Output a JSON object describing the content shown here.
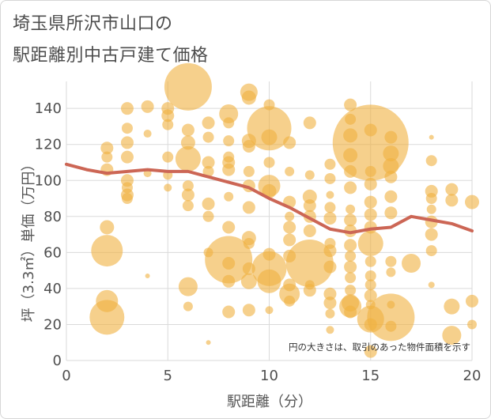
{
  "title_line1": "埼玉県所沢市山口の",
  "title_line2": "駅距離別中古戸建て価格",
  "chart_data": {
    "type": "scatter",
    "title": "埼玉県所沢市山口の駅距離別中古戸建て価格",
    "xlabel": "駅距離（分）",
    "ylabel": "坪（3.3㎡）単価（万円）",
    "xlim": [
      0,
      20
    ],
    "ylim": [
      0,
      155
    ],
    "x_ticks": [
      0,
      5,
      10,
      15,
      20
    ],
    "y_ticks": [
      0,
      20,
      40,
      60,
      80,
      100,
      120,
      140
    ],
    "grid": true,
    "note": "円の大きさは、取引のあった物件面積を示す",
    "colors": {
      "bubble": "#f0b040",
      "line": "#cc6655"
    },
    "bubbles": [
      {
        "x": 2,
        "y": 118,
        "r": 8
      },
      {
        "x": 2,
        "y": 113,
        "r": 7
      },
      {
        "x": 2,
        "y": 106,
        "r": 8
      },
      {
        "x": 2,
        "y": 74,
        "r": 9
      },
      {
        "x": 2,
        "y": 61,
        "r": 20
      },
      {
        "x": 2,
        "y": 33,
        "r": 14
      },
      {
        "x": 2,
        "y": 24,
        "r": 22
      },
      {
        "x": 3,
        "y": 140,
        "r": 8
      },
      {
        "x": 3,
        "y": 129,
        "r": 7
      },
      {
        "x": 3,
        "y": 121,
        "r": 8
      },
      {
        "x": 3,
        "y": 113,
        "r": 8
      },
      {
        "x": 3,
        "y": 100,
        "r": 8
      },
      {
        "x": 3,
        "y": 96,
        "r": 7
      },
      {
        "x": 3,
        "y": 92,
        "r": 8
      },
      {
        "x": 3,
        "y": 90,
        "r": 7
      },
      {
        "x": 4,
        "y": 141,
        "r": 8
      },
      {
        "x": 4,
        "y": 126,
        "r": 5
      },
      {
        "x": 4,
        "y": 104,
        "r": 5
      },
      {
        "x": 4,
        "y": 47,
        "r": 3
      },
      {
        "x": 5,
        "y": 140,
        "r": 8
      },
      {
        "x": 5,
        "y": 136,
        "r": 8
      },
      {
        "x": 5,
        "y": 131,
        "r": 7
      },
      {
        "x": 5,
        "y": 113,
        "r": 7
      },
      {
        "x": 5,
        "y": 103,
        "r": 6
      },
      {
        "x": 5,
        "y": 96,
        "r": 5
      },
      {
        "x": 6,
        "y": 152,
        "r": 30
      },
      {
        "x": 6,
        "y": 128,
        "r": 8
      },
      {
        "x": 6,
        "y": 121,
        "r": 9
      },
      {
        "x": 6,
        "y": 112,
        "r": 16
      },
      {
        "x": 6,
        "y": 97,
        "r": 7
      },
      {
        "x": 6,
        "y": 92,
        "r": 8
      },
      {
        "x": 6,
        "y": 86,
        "r": 7
      },
      {
        "x": 6,
        "y": 41,
        "r": 12
      },
      {
        "x": 6,
        "y": 30,
        "r": 6
      },
      {
        "x": 7,
        "y": 132,
        "r": 8
      },
      {
        "x": 7,
        "y": 124,
        "r": 7
      },
      {
        "x": 7,
        "y": 110,
        "r": 8
      },
      {
        "x": 7,
        "y": 105,
        "r": 7
      },
      {
        "x": 7,
        "y": 87,
        "r": 8
      },
      {
        "x": 7,
        "y": 80,
        "r": 7
      },
      {
        "x": 7,
        "y": 60,
        "r": 6
      },
      {
        "x": 7,
        "y": 10,
        "r": 3
      },
      {
        "x": 8,
        "y": 137,
        "r": 12
      },
      {
        "x": 8,
        "y": 132,
        "r": 7
      },
      {
        "x": 8,
        "y": 122,
        "r": 7
      },
      {
        "x": 8,
        "y": 113,
        "r": 7
      },
      {
        "x": 8,
        "y": 110,
        "r": 8
      },
      {
        "x": 8,
        "y": 106,
        "r": 8
      },
      {
        "x": 8,
        "y": 91,
        "r": 6
      },
      {
        "x": 8,
        "y": 74,
        "r": 8
      },
      {
        "x": 8,
        "y": 56,
        "r": 30
      },
      {
        "x": 8,
        "y": 54,
        "r": 8
      },
      {
        "x": 8,
        "y": 44,
        "r": 8
      },
      {
        "x": 8,
        "y": 27,
        "r": 8
      },
      {
        "x": 9,
        "y": 149,
        "r": 11
      },
      {
        "x": 9,
        "y": 146,
        "r": 9
      },
      {
        "x": 9,
        "y": 122,
        "r": 9
      },
      {
        "x": 9,
        "y": 119,
        "r": 8
      },
      {
        "x": 9,
        "y": 105,
        "r": 7
      },
      {
        "x": 9,
        "y": 97,
        "r": 8
      },
      {
        "x": 9,
        "y": 85,
        "r": 8
      },
      {
        "x": 9,
        "y": 68,
        "r": 9
      },
      {
        "x": 9,
        "y": 65,
        "r": 7
      },
      {
        "x": 9,
        "y": 51,
        "r": 8
      },
      {
        "x": 9,
        "y": 44,
        "r": 10
      },
      {
        "x": 9,
        "y": 28,
        "r": 8
      },
      {
        "x": 10,
        "y": 142,
        "r": 7
      },
      {
        "x": 10,
        "y": 129,
        "r": 28
      },
      {
        "x": 10,
        "y": 124,
        "r": 10
      },
      {
        "x": 10,
        "y": 110,
        "r": 7
      },
      {
        "x": 10,
        "y": 97,
        "r": 14
      },
      {
        "x": 10,
        "y": 94,
        "r": 9
      },
      {
        "x": 10,
        "y": 59,
        "r": 8
      },
      {
        "x": 10,
        "y": 51,
        "r": 22
      },
      {
        "x": 10,
        "y": 44,
        "r": 15
      },
      {
        "x": 10,
        "y": 28,
        "r": 5
      },
      {
        "x": 11,
        "y": 121,
        "r": 8
      },
      {
        "x": 11,
        "y": 105,
        "r": 6
      },
      {
        "x": 11,
        "y": 88,
        "r": 8
      },
      {
        "x": 11,
        "y": 80,
        "r": 6
      },
      {
        "x": 11,
        "y": 74,
        "r": 8
      },
      {
        "x": 11,
        "y": 67,
        "r": 8
      },
      {
        "x": 11,
        "y": 58,
        "r": 8
      },
      {
        "x": 11,
        "y": 42,
        "r": 8
      },
      {
        "x": 11,
        "y": 37,
        "r": 13
      },
      {
        "x": 11,
        "y": 33,
        "r": 7
      },
      {
        "x": 12,
        "y": 132,
        "r": 8
      },
      {
        "x": 12,
        "y": 103,
        "r": 6
      },
      {
        "x": 12,
        "y": 91,
        "r": 9
      },
      {
        "x": 12,
        "y": 86,
        "r": 8
      },
      {
        "x": 12,
        "y": 80,
        "r": 8
      },
      {
        "x": 12,
        "y": 72,
        "r": 8
      },
      {
        "x": 12,
        "y": 54,
        "r": 30
      },
      {
        "x": 12,
        "y": 42,
        "r": 6
      },
      {
        "x": 12,
        "y": 39,
        "r": 8
      },
      {
        "x": 13,
        "y": 109,
        "r": 7
      },
      {
        "x": 13,
        "y": 101,
        "r": 7
      },
      {
        "x": 13,
        "y": 92,
        "r": 5
      },
      {
        "x": 13,
        "y": 85,
        "r": 7
      },
      {
        "x": 13,
        "y": 79,
        "r": 8
      },
      {
        "x": 13,
        "y": 65,
        "r": 7
      },
      {
        "x": 13,
        "y": 61,
        "r": 8
      },
      {
        "x": 13,
        "y": 52,
        "r": 8
      },
      {
        "x": 13,
        "y": 37,
        "r": 8
      },
      {
        "x": 13,
        "y": 32,
        "r": 8
      },
      {
        "x": 13,
        "y": 26,
        "r": 6
      },
      {
        "x": 13,
        "y": 17,
        "r": 5
      },
      {
        "x": 14,
        "y": 142,
        "r": 8
      },
      {
        "x": 14,
        "y": 134,
        "r": 7
      },
      {
        "x": 14,
        "y": 125,
        "r": 9
      },
      {
        "x": 14,
        "y": 114,
        "r": 9
      },
      {
        "x": 14,
        "y": 105,
        "r": 8
      },
      {
        "x": 14,
        "y": 96,
        "r": 8
      },
      {
        "x": 14,
        "y": 84,
        "r": 6
      },
      {
        "x": 14,
        "y": 78,
        "r": 8
      },
      {
        "x": 14,
        "y": 72,
        "r": 8
      },
      {
        "x": 14,
        "y": 64,
        "r": 8
      },
      {
        "x": 14,
        "y": 58,
        "r": 7
      },
      {
        "x": 14,
        "y": 52,
        "r": 8
      },
      {
        "x": 14,
        "y": 46,
        "r": 7
      },
      {
        "x": 14,
        "y": 39,
        "r": 7
      },
      {
        "x": 14,
        "y": 32,
        "r": 11
      },
      {
        "x": 14,
        "y": 30,
        "r": 14
      },
      {
        "x": 14,
        "y": 27,
        "r": 8
      },
      {
        "x": 15,
        "y": 121,
        "r": 48
      },
      {
        "x": 15,
        "y": 128,
        "r": 8
      },
      {
        "x": 15,
        "y": 105,
        "r": 7
      },
      {
        "x": 15,
        "y": 98,
        "r": 8
      },
      {
        "x": 15,
        "y": 88,
        "r": 8
      },
      {
        "x": 15,
        "y": 81,
        "r": 8
      },
      {
        "x": 15,
        "y": 74,
        "r": 8
      },
      {
        "x": 15,
        "y": 65,
        "r": 16
      },
      {
        "x": 15,
        "y": 55,
        "r": 7
      },
      {
        "x": 15,
        "y": 47,
        "r": 7
      },
      {
        "x": 15,
        "y": 42,
        "r": 7
      },
      {
        "x": 15,
        "y": 36,
        "r": 8
      },
      {
        "x": 15,
        "y": 31,
        "r": 6
      },
      {
        "x": 15,
        "y": 23,
        "r": 17
      },
      {
        "x": 15,
        "y": 20,
        "r": 8
      },
      {
        "x": 15,
        "y": 5,
        "r": 8
      },
      {
        "x": 16,
        "y": 124,
        "r": 8
      },
      {
        "x": 16,
        "y": 115,
        "r": 10
      },
      {
        "x": 16,
        "y": 108,
        "r": 10
      },
      {
        "x": 16,
        "y": 102,
        "r": 8
      },
      {
        "x": 16,
        "y": 91,
        "r": 8
      },
      {
        "x": 16,
        "y": 82,
        "r": 8
      },
      {
        "x": 16,
        "y": 55,
        "r": 7
      },
      {
        "x": 16,
        "y": 49,
        "r": 6
      },
      {
        "x": 16,
        "y": 31,
        "r": 5
      },
      {
        "x": 16,
        "y": 24,
        "r": 30
      },
      {
        "x": 16,
        "y": 19,
        "r": 7
      },
      {
        "x": 17,
        "y": 54,
        "r": 12
      },
      {
        "x": 18,
        "y": 124,
        "r": 3
      },
      {
        "x": 18,
        "y": 111,
        "r": 7
      },
      {
        "x": 18,
        "y": 94,
        "r": 8
      },
      {
        "x": 18,
        "y": 90,
        "r": 7
      },
      {
        "x": 18,
        "y": 84,
        "r": 6
      },
      {
        "x": 18,
        "y": 77,
        "r": 8
      },
      {
        "x": 18,
        "y": 70,
        "r": 8
      },
      {
        "x": 18,
        "y": 61,
        "r": 7
      },
      {
        "x": 18,
        "y": 42,
        "r": 4
      },
      {
        "x": 19,
        "y": 95,
        "r": 8
      },
      {
        "x": 19,
        "y": 89,
        "r": 8
      },
      {
        "x": 19,
        "y": 30,
        "r": 10
      },
      {
        "x": 19,
        "y": 14,
        "r": 12
      },
      {
        "x": 20,
        "y": 88,
        "r": 9
      },
      {
        "x": 20,
        "y": 33,
        "r": 8
      },
      {
        "x": 20,
        "y": 20,
        "r": 6
      }
    ],
    "trend_line": {
      "x": [
        0,
        1,
        2,
        3,
        4,
        5,
        6,
        7,
        8,
        9,
        10,
        11,
        12,
        13,
        14,
        15,
        16,
        17,
        18,
        19,
        20
      ],
      "y": [
        109,
        106,
        104,
        105,
        106,
        105,
        105,
        102,
        99,
        96,
        90,
        85,
        79,
        73,
        71,
        73,
        74,
        80,
        78,
        76,
        72
      ]
    }
  }
}
